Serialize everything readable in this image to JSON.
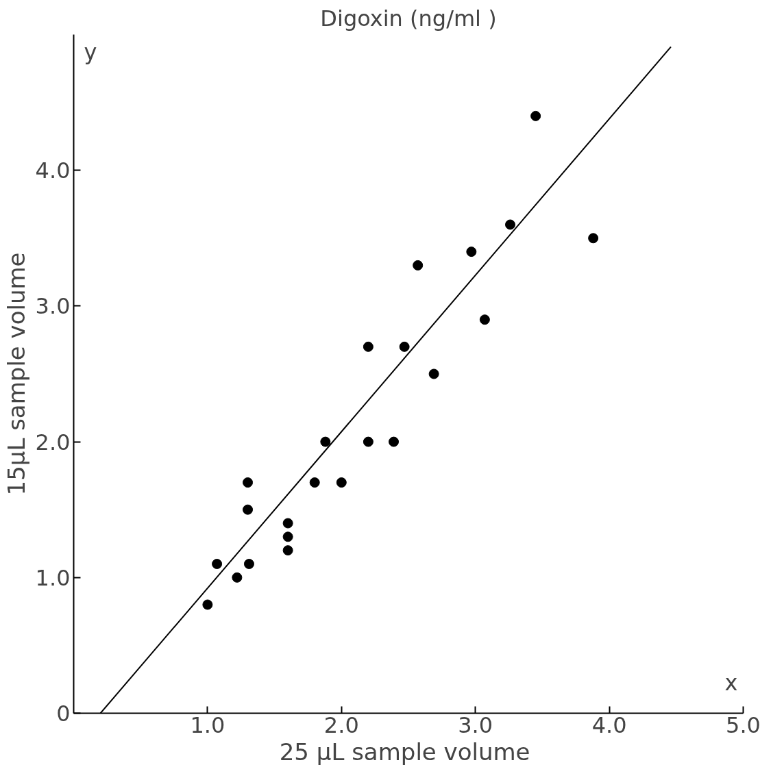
{
  "chart_data": {
    "type": "scatter",
    "title": "Digoxin (ng/ml )",
    "xlabel": "25 μL  sample volume",
    "ylabel": "15μL sample volume",
    "annotations": [
      "y",
      "x"
    ],
    "xlim": [
      0,
      5.0
    ],
    "ylim": [
      0,
      5.0
    ],
    "xticks": [
      {
        "value": 1,
        "label": "1.0"
      },
      {
        "value": 2,
        "label": "2.0"
      },
      {
        "value": 3,
        "label": "3.0"
      },
      {
        "value": 4,
        "label": "4.0"
      },
      {
        "value": 5,
        "label": "5.0"
      }
    ],
    "yticks": [
      0,
      {
        "value": 1,
        "label": "1.0"
      },
      {
        "value": 2,
        "label": "2.0"
      },
      {
        "value": 3,
        "label": "3.0"
      },
      {
        "value": 4,
        "label": "4.0"
      }
    ],
    "grid": false,
    "series": [
      {
        "marker": "circle",
        "color": "#000000",
        "x": [
          1.0,
          1.07,
          1.22,
          1.3,
          1.3,
          1.31,
          1.6,
          1.6,
          1.6,
          1.8,
          1.88,
          2.0,
          2.2,
          2.2,
          2.39,
          2.47,
          2.57,
          2.69,
          2.97,
          3.07,
          3.26,
          3.45,
          3.88
        ],
        "values": [
          0.8,
          1.1,
          1.0,
          1.7,
          1.5,
          1.1,
          1.4,
          1.3,
          1.2,
          1.7,
          2.0,
          1.7,
          2.0,
          2.7,
          2.0,
          2.7,
          3.3,
          2.5,
          3.4,
          2.9,
          3.6,
          4.4,
          3.5
        ]
      },
      {
        "type": "line",
        "color": "#000000",
        "x": [
          0.2,
          4.46
        ],
        "values": [
          0,
          4.91
        ]
      }
    ]
  }
}
